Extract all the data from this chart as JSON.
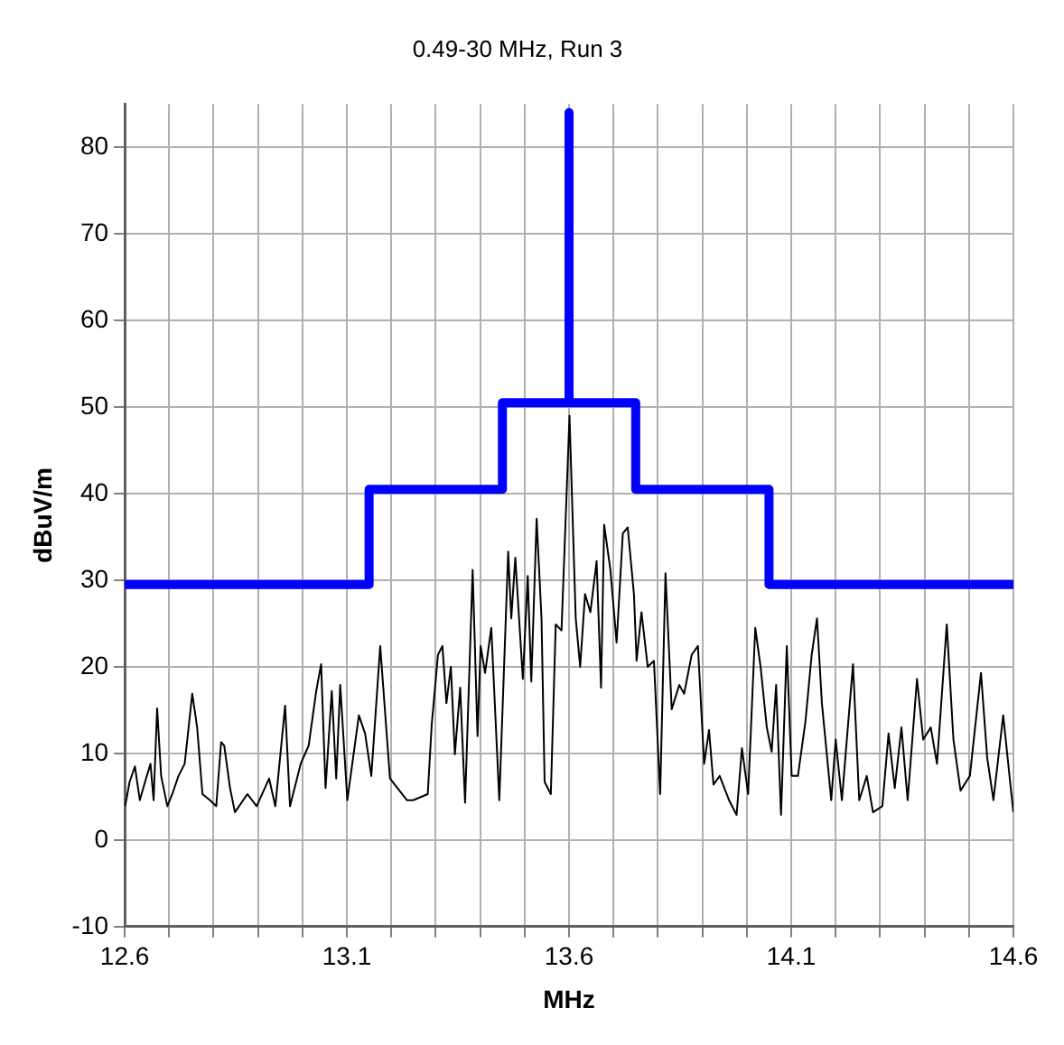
{
  "chart_data": {
    "type": "line",
    "title": "0.49-30 MHz, Run 3",
    "xlabel": "MHz",
    "ylabel": "dBuV/m",
    "xlim": [
      12.6,
      14.6
    ],
    "ylim": [
      -10,
      85
    ],
    "xticks": [
      12.6,
      {
        "value": 12.7,
        "label": null
      },
      {
        "value": 12.8,
        "label": null
      },
      {
        "value": 12.9,
        "label": null
      },
      {
        "value": 13.0,
        "label": null
      },
      13.1,
      {
        "value": 13.2,
        "label": null
      },
      {
        "value": 13.3,
        "label": null
      },
      {
        "value": 13.4,
        "label": null
      },
      {
        "value": 13.5,
        "label": null
      },
      13.6,
      {
        "value": 13.7,
        "label": null
      },
      {
        "value": 13.8,
        "label": null
      },
      {
        "value": 13.9,
        "label": null
      },
      {
        "value": 14.0,
        "label": null
      },
      14.1,
      {
        "value": 14.2,
        "label": null
      },
      {
        "value": 14.3,
        "label": null
      },
      {
        "value": 14.4,
        "label": null
      },
      {
        "value": 14.5,
        "label": null
      },
      14.6
    ],
    "yticks": [
      -10,
      0,
      10,
      20,
      30,
      40,
      50,
      60,
      70,
      80
    ],
    "grid": true,
    "legend": false,
    "marker": "none",
    "line_style": "solid",
    "series": [
      {
        "color": "#000000",
        "x": [
          12.601,
          12.611,
          12.623,
          12.634,
          12.648,
          12.658,
          12.665,
          12.673,
          12.682,
          12.696,
          12.707,
          12.721,
          12.735,
          12.752,
          12.763,
          12.775,
          12.792,
          12.806,
          12.817,
          12.824,
          12.837,
          12.848,
          12.876,
          12.897,
          12.925,
          12.939,
          12.961,
          12.972,
          12.996,
          13.014,
          13.031,
          13.042,
          13.052,
          13.066,
          13.076,
          13.085,
          13.101,
          13.127,
          13.141,
          13.155,
          13.175,
          13.197,
          13.214,
          13.235,
          13.249,
          13.282,
          13.291,
          13.305,
          13.315,
          13.324,
          13.334,
          13.343,
          13.355,
          13.366,
          13.383,
          13.394,
          13.401,
          13.411,
          13.425,
          13.443,
          13.463,
          13.47,
          13.479,
          13.496,
          13.507,
          13.515,
          13.527,
          13.538,
          13.545,
          13.559,
          13.57,
          13.583,
          13.601,
          13.615,
          13.625,
          13.636,
          13.648,
          13.662,
          13.672,
          13.679,
          13.693,
          13.707,
          13.721,
          13.732,
          13.746,
          13.752,
          13.763,
          13.777,
          13.791,
          13.805,
          13.817,
          13.831,
          13.848,
          13.859,
          13.876,
          13.89,
          13.904,
          13.915,
          13.925,
          13.939,
          13.96,
          13.977,
          13.989,
          14.003,
          14.019,
          14.031,
          14.045,
          14.056,
          14.066,
          14.077,
          14.09,
          14.101,
          14.115,
          14.132,
          14.146,
          14.158,
          14.169,
          14.19,
          14.2,
          14.214,
          14.239,
          14.253,
          14.27,
          14.284,
          14.305,
          14.319,
          14.333,
          14.348,
          14.362,
          14.383,
          14.397,
          14.414,
          14.428,
          14.45,
          14.465,
          14.481,
          14.502,
          14.527,
          14.541,
          14.555,
          14.577,
          14.594,
          14.6
        ],
        "values": [
          3.9,
          6.7,
          8.5,
          4.6,
          7.1,
          8.8,
          4.6,
          15.2,
          7.4,
          3.9,
          5.3,
          7.4,
          8.8,
          16.9,
          13.0,
          5.3,
          4.6,
          3.9,
          11.3,
          10.9,
          6.0,
          3.2,
          5.3,
          3.9,
          7.1,
          3.9,
          15.5,
          3.9,
          8.8,
          10.9,
          17.2,
          20.3,
          6.0,
          17.2,
          7.1,
          17.9,
          4.6,
          14.4,
          12.3,
          7.4,
          22.4,
          7.1,
          6.0,
          4.6,
          4.6,
          5.3,
          13.4,
          21.4,
          22.4,
          15.8,
          20.0,
          9.9,
          17.6,
          4.3,
          31.2,
          12.0,
          22.4,
          19.3,
          24.5,
          4.6,
          33.3,
          25.6,
          32.6,
          18.6,
          30.5,
          18.3,
          37.1,
          25.6,
          6.7,
          5.3,
          24.9,
          24.2,
          49,
          25.6,
          20.0,
          28.4,
          26.3,
          32.2,
          17.6,
          36.4,
          31.2,
          22.8,
          35.4,
          36.1,
          28.4,
          20.7,
          26.3,
          20.0,
          20.7,
          5.3,
          30.8,
          15.1,
          17.9,
          16.9,
          21.4,
          22.4,
          8.8,
          12.7,
          6.4,
          7.4,
          4.6,
          2.9,
          10.6,
          5.3,
          24.5,
          20.0,
          13.0,
          10.2,
          17.9,
          2.9,
          22.4,
          7.4,
          7.4,
          13.7,
          21.4,
          25.6,
          15.8,
          4.6,
          11.6,
          4.6,
          20.3,
          4.6,
          7.4,
          3.2,
          3.9,
          12.3,
          6.0,
          13.0,
          4.6,
          18.6,
          11.6,
          13.0,
          8.8,
          24.9,
          11.6,
          5.7,
          7.4,
          19.3,
          9.5,
          4.6,
          14.4,
          6.0,
          3.2
        ]
      },
      {
        "color": "#0000ff",
        "x": [
          12.6,
          13.15,
          13.15,
          13.45,
          13.45,
          13.6,
          13.6,
          13.6,
          13.75,
          13.75,
          14.05,
          14.05,
          14.6
        ],
        "values": [
          29.5,
          29.5,
          40.5,
          40.5,
          50.5,
          50.5,
          84,
          50.5,
          50.5,
          40.5,
          40.5,
          29.5,
          29.5
        ]
      }
    ]
  }
}
